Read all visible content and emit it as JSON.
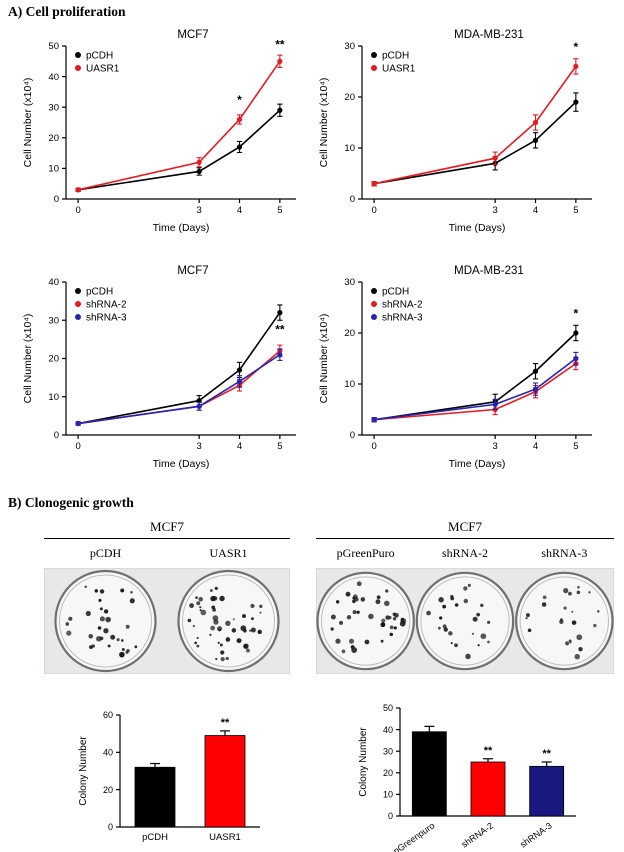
{
  "panel_a": {
    "label": "A) Cell proliferation"
  },
  "panel_b": {
    "label": "B) Clonogenic growth",
    "groups": [
      {
        "title": "MCF7",
        "plates": [
          {
            "label": "pCDH",
            "colonies": 32
          },
          {
            "label": "UASR1",
            "colonies": 49
          }
        ]
      },
      {
        "title": "MCF7",
        "plates": [
          {
            "label": "pGreenPuro",
            "colonies": 39
          },
          {
            "label": "shRNA-2",
            "colonies": 25
          },
          {
            "label": "shRNA-3",
            "colonies": 23
          }
        ]
      }
    ]
  },
  "colors": {
    "black": "#000000",
    "red_line": "#e31b23",
    "blue_line": "#2525b1",
    "red_bar": "#fe0000",
    "navy_bar": "#18187e"
  },
  "chart_data": [
    {
      "type": "line",
      "title": "MCF7",
      "xlabel": "Time (Days)",
      "ylabel": "Cell Number (x10⁴)",
      "x": [
        0,
        3,
        4,
        5
      ],
      "xlim": [
        -0.3,
        5.4
      ],
      "ylim": [
        0,
        50
      ],
      "ytick_step": 10,
      "legend_position": "top-left",
      "grid": false,
      "series": [
        {
          "name": "pCDH",
          "color": "#000000",
          "values": [
            3,
            9,
            17,
            29
          ],
          "errors": [
            0.5,
            1.2,
            1.8,
            2.0
          ]
        },
        {
          "name": "UASR1",
          "color": "#e31b23",
          "values": [
            3,
            12,
            26,
            45
          ],
          "errors": [
            0.5,
            1.5,
            1.5,
            2.0
          ]
        }
      ],
      "annotations": [
        {
          "x": 4,
          "y": 31,
          "text": "*"
        },
        {
          "x": 5,
          "y": 49.2,
          "text": "**"
        }
      ]
    },
    {
      "type": "line",
      "title": "MDA-MB-231",
      "xlabel": "Time (Days)",
      "ylabel": "Cell Number (x10⁴)",
      "x": [
        0,
        3,
        4,
        5
      ],
      "xlim": [
        -0.3,
        5.4
      ],
      "ylim": [
        0,
        30
      ],
      "ytick_step": 10,
      "legend_position": "top-left",
      "grid": false,
      "series": [
        {
          "name": "pCDH",
          "color": "#000000",
          "values": [
            3,
            7,
            11.5,
            19
          ],
          "errors": [
            0.4,
            1.3,
            1.5,
            1.8
          ]
        },
        {
          "name": "UASR1",
          "color": "#e31b23",
          "values": [
            3,
            8,
            15,
            26
          ],
          "errors": [
            0.4,
            1.2,
            1.5,
            1.5
          ]
        }
      ],
      "annotations": [
        {
          "x": 5,
          "y": 29,
          "text": "*"
        }
      ]
    },
    {
      "type": "line",
      "title": "MCF7",
      "xlabel": "Time (Days)",
      "ylabel": "Cell Number (x10⁴)",
      "x": [
        0,
        3,
        4,
        5
      ],
      "xlim": [
        -0.3,
        5.4
      ],
      "ylim": [
        0,
        40
      ],
      "ytick_step": 10,
      "legend_position": "top-left",
      "grid": false,
      "series": [
        {
          "name": "pCDH",
          "color": "#000000",
          "values": [
            3,
            9,
            17,
            32
          ],
          "errors": [
            0.4,
            1.3,
            2.0,
            2.0
          ]
        },
        {
          "name": "shRNA-2",
          "color": "#e31b23",
          "values": [
            3,
            7.5,
            13,
            22
          ],
          "errors": [
            0.4,
            1.0,
            1.5,
            1.5
          ]
        },
        {
          "name": "shRNA-3",
          "color": "#2525b1",
          "values": [
            3,
            7.5,
            14,
            21
          ],
          "errors": [
            0.4,
            1.0,
            1.5,
            1.5
          ]
        }
      ],
      "annotations": [
        {
          "x": 5,
          "y": 26.5,
          "text": "**"
        }
      ]
    },
    {
      "type": "line",
      "title": "MDA-MB-231",
      "xlabel": "Time (Days)",
      "ylabel": "Cell Number (x10⁴)",
      "x": [
        0,
        3,
        4,
        5
      ],
      "xlim": [
        -0.3,
        5.4
      ],
      "ylim": [
        0,
        30
      ],
      "ytick_step": 10,
      "legend_position": "top-left",
      "grid": false,
      "series": [
        {
          "name": "pCDH",
          "color": "#000000",
          "values": [
            3,
            6.5,
            12.5,
            20
          ],
          "errors": [
            0.4,
            1.5,
            1.5,
            1.5
          ]
        },
        {
          "name": "shRNA-2",
          "color": "#e31b23",
          "values": [
            3,
            5,
            8.5,
            14
          ],
          "errors": [
            0.4,
            1.0,
            1.2,
            1.2
          ]
        },
        {
          "name": "shRNA-3",
          "color": "#2525b1",
          "values": [
            3,
            6,
            9,
            15
          ],
          "errors": [
            0.4,
            1.0,
            1.2,
            1.2
          ]
        }
      ],
      "annotations": [
        {
          "x": 5,
          "y": 23,
          "text": "*"
        }
      ]
    },
    {
      "type": "bar",
      "ylabel": "Colony Number",
      "categories": [
        "pCDH",
        "UASR1"
      ],
      "values": [
        32,
        49
      ],
      "errors": [
        2,
        2.5
      ],
      "colors": [
        "#000000",
        "#fe0000"
      ],
      "ylim": [
        0,
        60
      ],
      "ytick_step": 20,
      "annotations": [
        "",
        "**"
      ],
      "xlabel_rotation": 0,
      "grid": false
    },
    {
      "type": "bar",
      "ylabel": "Colony Number",
      "categories": [
        "pGreenpuro",
        "shRNA-2",
        "shRNA-3"
      ],
      "values": [
        39,
        25,
        23
      ],
      "errors": [
        2.5,
        1.5,
        2
      ],
      "colors": [
        "#000000",
        "#fe0000",
        "#18187e"
      ],
      "ylim": [
        0,
        50
      ],
      "ytick_step": 10,
      "annotations": [
        "",
        "**",
        "**"
      ],
      "xlabel_rotation": -35,
      "grid": false
    }
  ]
}
